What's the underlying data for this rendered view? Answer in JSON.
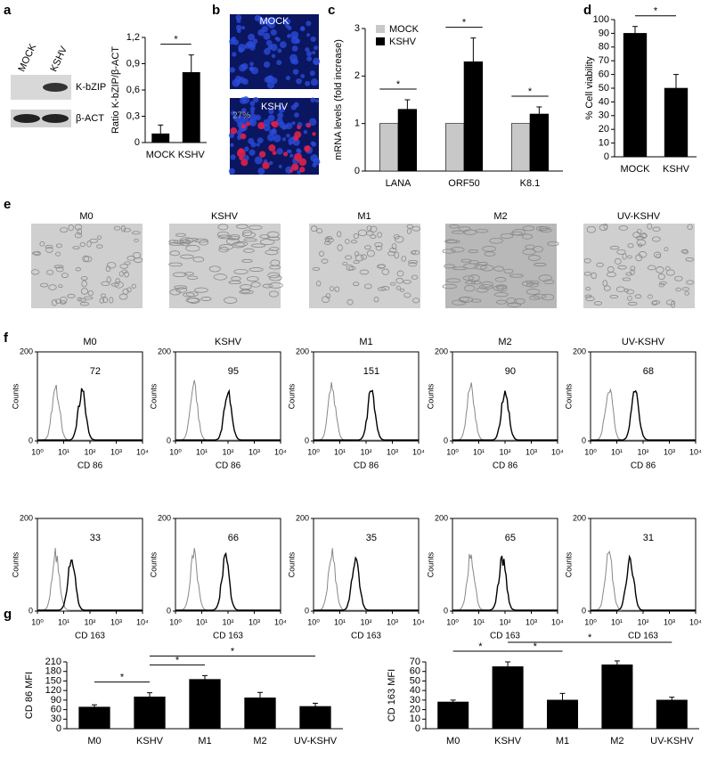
{
  "blot": {
    "panel": "a",
    "lanes": [
      "MOCK",
      "KSHV"
    ],
    "bands": [
      "K-bZIP",
      "β-ACT"
    ]
  },
  "micro_b": {
    "panel": "b",
    "labels": [
      "MOCK",
      "KSHV"
    ],
    "annotation": "27%"
  },
  "micro_e": {
    "panel": "e",
    "labels": [
      "M0",
      "KSHV",
      "M1",
      "M2",
      "UV-KSHV"
    ]
  },
  "flow": {
    "panel": "f",
    "titles": [
      "M0",
      "KSHV",
      "M1",
      "M2",
      "UV-KSHV"
    ],
    "ylabel": "Counts",
    "ylim": [
      0,
      200
    ],
    "yticks": [
      0,
      200
    ],
    "xlim": [
      1,
      10000
    ],
    "log_x": true,
    "xticks": [
      {
        "value": 1,
        "label": "10⁰"
      },
      {
        "value": 10,
        "label": "10¹"
      },
      {
        "value": 100,
        "label": "10²"
      },
      {
        "value": 1000,
        "label": "10³"
      },
      {
        "value": 10000,
        "label": "10⁴"
      }
    ],
    "rows": [
      {
        "xlabel": "CD 86",
        "mfi": [
          72,
          95,
          151,
          90,
          68
        ]
      },
      {
        "xlabel": "CD 163",
        "mfi": [
          33,
          66,
          35,
          65,
          31
        ]
      }
    ]
  },
  "chart_data": [
    {
      "panel": "a",
      "type": "bar",
      "categories": [
        "MOCK",
        "KSHV"
      ],
      "values": [
        0.1,
        0.8
      ],
      "errors": [
        0.1,
        0.2
      ],
      "color": "#000000",
      "ylabel": "Ratio K-bZIP/β-ACT",
      "ylim": [
        0,
        1.2
      ],
      "yticks": [
        0,
        {
          "value": 0.3,
          "label": "0,3"
        },
        {
          "value": 0.6,
          "label": "0,6"
        },
        {
          "value": 0.9,
          "label": "0,9"
        },
        {
          "value": 1.2,
          "label": "1,2"
        }
      ],
      "significance": [
        {
          "label": "*",
          "pair": [
            0,
            1
          ]
        }
      ]
    },
    {
      "panel": "c",
      "type": "bar",
      "categories": [
        "LANA",
        "ORF50",
        "K8.1"
      ],
      "series": [
        {
          "name": "MOCK",
          "color": "#c8c8c8",
          "values": [
            1,
            1,
            1
          ]
        },
        {
          "name": "KSHV",
          "color": "#000000",
          "values": [
            1.3,
            2.3,
            1.2
          ],
          "errors": [
            0.2,
            0.5,
            0.15
          ]
        }
      ],
      "ylabel": "mRNA levels (fold increase)",
      "ylim": [
        0,
        3
      ],
      "yticks": [
        0,
        1,
        2,
        3
      ],
      "legend": "upper left",
      "significance": [
        {
          "label": "*",
          "category": 0
        },
        {
          "label": "*",
          "category": 1
        },
        {
          "label": "*",
          "category": 2
        }
      ]
    },
    {
      "panel": "d",
      "type": "bar",
      "categories": [
        "MOCK",
        "KSHV"
      ],
      "values": [
        90,
        50
      ],
      "errors": [
        5,
        10
      ],
      "color": "#000000",
      "ylabel": "% Cell viability",
      "ylim": [
        0,
        100
      ],
      "yticks": [
        0,
        10,
        20,
        30,
        40,
        50,
        60,
        70,
        80,
        90,
        100
      ],
      "significance": [
        {
          "label": "*",
          "pair": [
            0,
            1
          ]
        }
      ]
    },
    {
      "panel": "g",
      "type": "bar",
      "categories": [
        "M0",
        "KSHV",
        "M1",
        "M2",
        "UV-KSHV"
      ],
      "values": [
        68,
        100,
        155,
        97,
        70
      ],
      "errors": [
        7,
        13,
        12,
        17,
        10
      ],
      "color": "#000000",
      "ylabel": "CD 86 MFI",
      "ylim": [
        0,
        210
      ],
      "yticks": [
        0,
        30,
        60,
        90,
        120,
        150,
        180,
        210
      ],
      "significance": [
        {
          "label": "*",
          "pair": [
            0,
            1
          ]
        },
        {
          "label": "*",
          "pair": [
            1,
            2
          ]
        },
        {
          "label": "*",
          "pair": [
            1,
            4
          ]
        }
      ]
    },
    {
      "type": "bar",
      "categories": [
        "M0",
        "KSHV",
        "M1",
        "M2",
        "UV-KSHV"
      ],
      "values": [
        28,
        65,
        30,
        67,
        30
      ],
      "errors": [
        2,
        5,
        7,
        4,
        3
      ],
      "color": "#000000",
      "ylabel": "CD 163 MFI",
      "ylim": [
        0,
        70
      ],
      "yticks": [
        0,
        10,
        20,
        30,
        40,
        50,
        60,
        70
      ],
      "significance": [
        {
          "label": "*",
          "pair": [
            0,
            1
          ]
        },
        {
          "label": "*",
          "pair": [
            1,
            2
          ]
        },
        {
          "label": "*",
          "pair": [
            1,
            4
          ]
        }
      ]
    }
  ]
}
